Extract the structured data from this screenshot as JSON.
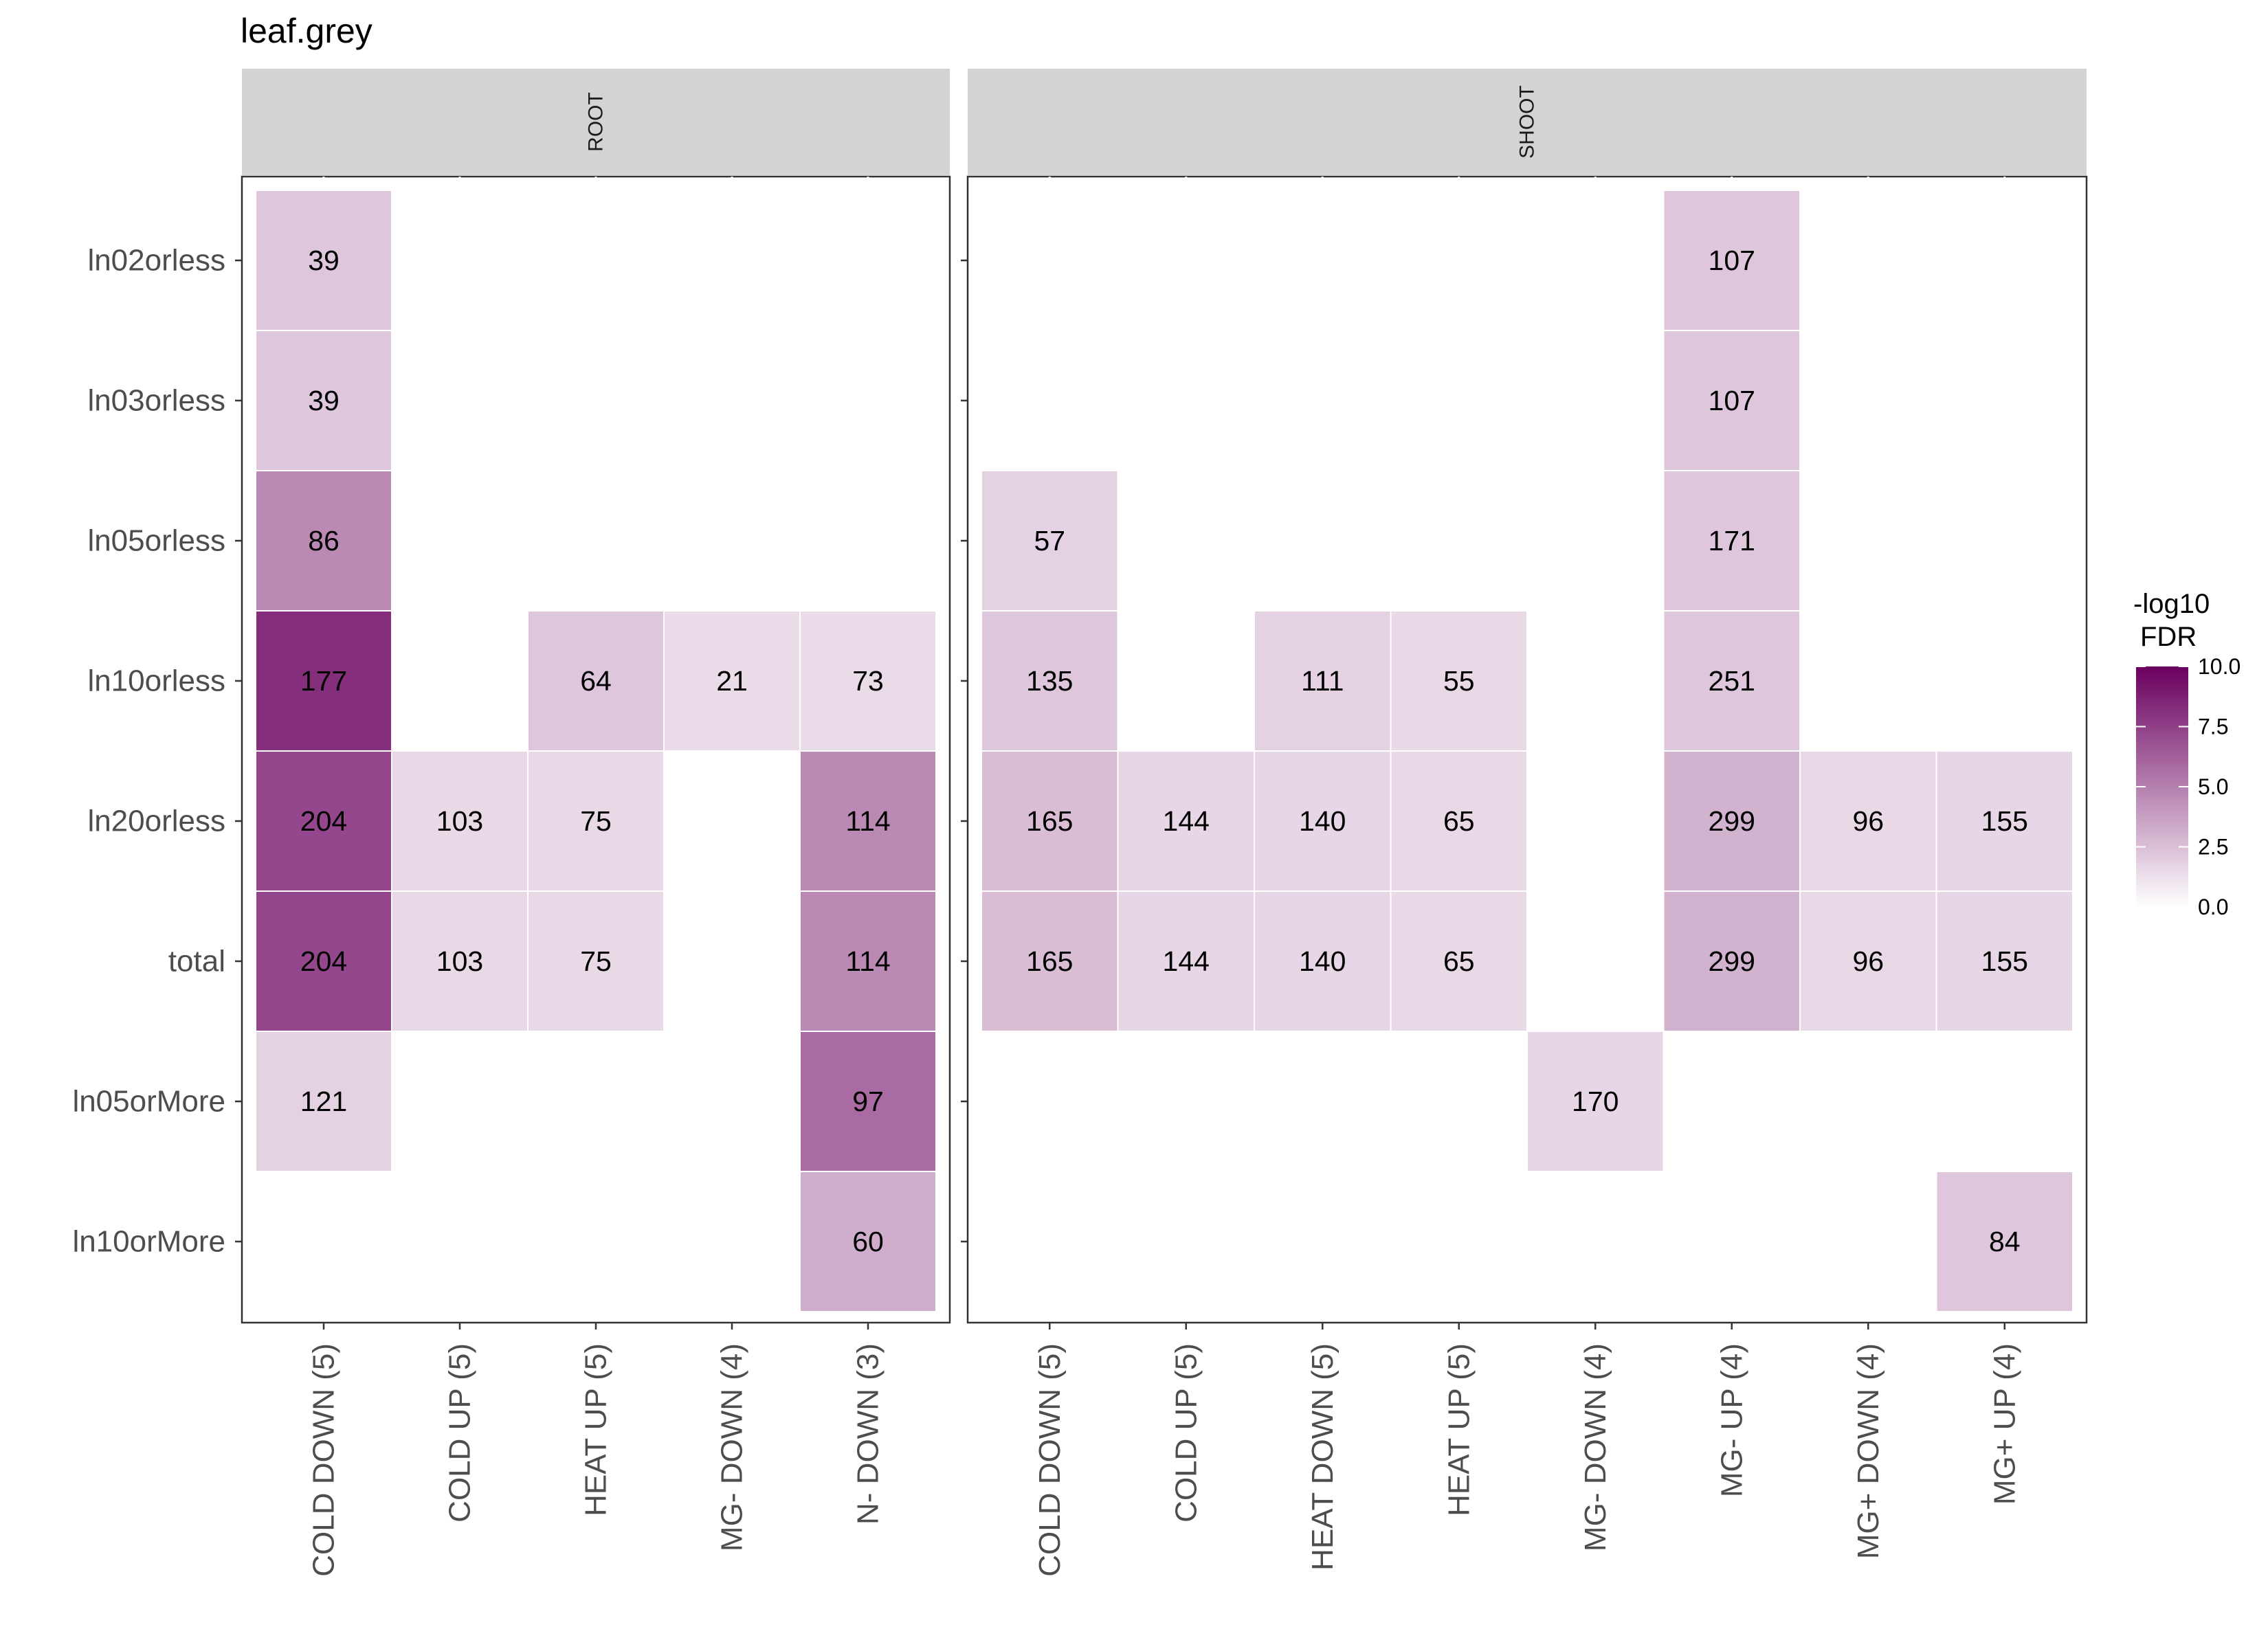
{
  "chart_data": {
    "type": "heatmap",
    "title": "leaf.grey",
    "rows": [
      "ln02orless",
      "ln03orless",
      "ln05orless",
      "ln10orless",
      "ln20orless",
      "total",
      "ln05orMore",
      "ln10orMore"
    ],
    "panels": [
      {
        "name": "ROOT",
        "columns": [
          "COLD DOWN (5)",
          "COLD UP (5)",
          "HEAT UP (5)",
          "MG- DOWN (4)",
          "N- DOWN (3)"
        ],
        "cells": [
          {
            "row": "ln02orless",
            "col": "COLD DOWN (5)",
            "label": "39",
            "fdr": 2.2
          },
          {
            "row": "ln03orless",
            "col": "COLD DOWN (5)",
            "label": "39",
            "fdr": 2.2
          },
          {
            "row": "ln05orless",
            "col": "COLD DOWN (5)",
            "label": "86",
            "fdr": 4.6
          },
          {
            "row": "ln10orless",
            "col": "COLD DOWN (5)",
            "label": "177",
            "fdr": 8.2
          },
          {
            "row": "ln10orless",
            "col": "HEAT UP (5)",
            "label": "64",
            "fdr": 2.2
          },
          {
            "row": "ln10orless",
            "col": "MG- DOWN (4)",
            "label": "21",
            "fdr": 1.4
          },
          {
            "row": "ln10orless",
            "col": "N- DOWN (3)",
            "label": "73",
            "fdr": 1.4
          },
          {
            "row": "ln20orless",
            "col": "COLD DOWN (5)",
            "label": "204",
            "fdr": 7.2
          },
          {
            "row": "ln20orless",
            "col": "COLD UP (5)",
            "label": "103",
            "fdr": 1.5
          },
          {
            "row": "ln20orless",
            "col": "HEAT UP (5)",
            "label": "75",
            "fdr": 1.5
          },
          {
            "row": "ln20orless",
            "col": "N- DOWN (3)",
            "label": "114",
            "fdr": 4.6
          },
          {
            "row": "total",
            "col": "COLD DOWN (5)",
            "label": "204",
            "fdr": 7.2
          },
          {
            "row": "total",
            "col": "COLD UP (5)",
            "label": "103",
            "fdr": 1.5
          },
          {
            "row": "total",
            "col": "HEAT UP (5)",
            "label": "75",
            "fdr": 1.5
          },
          {
            "row": "total",
            "col": "N- DOWN (3)",
            "label": "114",
            "fdr": 4.6
          },
          {
            "row": "ln05orMore",
            "col": "COLD DOWN (5)",
            "label": "121",
            "fdr": 1.8
          },
          {
            "row": "ln05orMore",
            "col": "N- DOWN (3)",
            "label": "97",
            "fdr": 5.8
          },
          {
            "row": "ln10orMore",
            "col": "N- DOWN (3)",
            "label": "60",
            "fdr": 3.2
          }
        ]
      },
      {
        "name": "SHOOT",
        "columns": [
          "COLD DOWN (5)",
          "COLD UP (5)",
          "HEAT DOWN (5)",
          "HEAT UP (5)",
          "MG- DOWN (4)",
          "MG- UP (4)",
          "MG+ DOWN (4)",
          "MG+ UP (4)"
        ],
        "cells": [
          {
            "row": "ln02orless",
            "col": "MG- UP (4)",
            "label": "107",
            "fdr": 2.2
          },
          {
            "row": "ln03orless",
            "col": "MG- UP (4)",
            "label": "107",
            "fdr": 2.2
          },
          {
            "row": "ln05orless",
            "col": "COLD DOWN (5)",
            "label": "57",
            "fdr": 1.8
          },
          {
            "row": "ln05orless",
            "col": "MG- UP (4)",
            "label": "171",
            "fdr": 2.2
          },
          {
            "row": "ln10orless",
            "col": "COLD DOWN (5)",
            "label": "135",
            "fdr": 2.2
          },
          {
            "row": "ln10orless",
            "col": "HEAT DOWN (5)",
            "label": "111",
            "fdr": 1.8
          },
          {
            "row": "ln10orless",
            "col": "HEAT UP (5)",
            "label": "55",
            "fdr": 1.5
          },
          {
            "row": "ln10orless",
            "col": "MG- UP (4)",
            "label": "251",
            "fdr": 2.2
          },
          {
            "row": "ln20orless",
            "col": "COLD DOWN (5)",
            "label": "165",
            "fdr": 2.6
          },
          {
            "row": "ln20orless",
            "col": "COLD UP (5)",
            "label": "144",
            "fdr": 1.6
          },
          {
            "row": "ln20orless",
            "col": "HEAT DOWN (5)",
            "label": "140",
            "fdr": 1.6
          },
          {
            "row": "ln20orless",
            "col": "HEAT UP (5)",
            "label": "65",
            "fdr": 1.5
          },
          {
            "row": "ln20orless",
            "col": "MG- UP (4)",
            "label": "299",
            "fdr": 3.0
          },
          {
            "row": "ln20orless",
            "col": "MG+ DOWN (4)",
            "label": "96",
            "fdr": 1.5
          },
          {
            "row": "ln20orless",
            "col": "MG+ UP (4)",
            "label": "155",
            "fdr": 1.6
          },
          {
            "row": "total",
            "col": "COLD DOWN (5)",
            "label": "165",
            "fdr": 2.6
          },
          {
            "row": "total",
            "col": "COLD UP (5)",
            "label": "144",
            "fdr": 1.6
          },
          {
            "row": "total",
            "col": "HEAT DOWN (5)",
            "label": "140",
            "fdr": 1.6
          },
          {
            "row": "total",
            "col": "HEAT UP (5)",
            "label": "65",
            "fdr": 1.5
          },
          {
            "row": "total",
            "col": "MG- UP (4)",
            "label": "299",
            "fdr": 3.0
          },
          {
            "row": "total",
            "col": "MG+ DOWN (4)",
            "label": "96",
            "fdr": 1.5
          },
          {
            "row": "total",
            "col": "MG+ UP (4)",
            "label": "155",
            "fdr": 1.6
          },
          {
            "row": "ln05orMore",
            "col": "MG- DOWN (4)",
            "label": "170",
            "fdr": 1.6
          },
          {
            "row": "ln10orMore",
            "col": "MG+ UP (4)",
            "label": "84",
            "fdr": 2.2
          }
        ]
      }
    ],
    "legend": {
      "title_lines": [
        "-log10",
        "FDR"
      ],
      "ticks": [
        "10.0",
        "7.5",
        "5.0",
        "2.5",
        "0.0"
      ],
      "range": [
        0,
        10
      ],
      "position": "right",
      "color_low": "#ffffff",
      "color_high": "#6a005f"
    },
    "colors": {
      "panel_border": "#333333",
      "strip_fill": "#d3d3d3",
      "tile_border": "#ffffff"
    },
    "grid": false
  }
}
